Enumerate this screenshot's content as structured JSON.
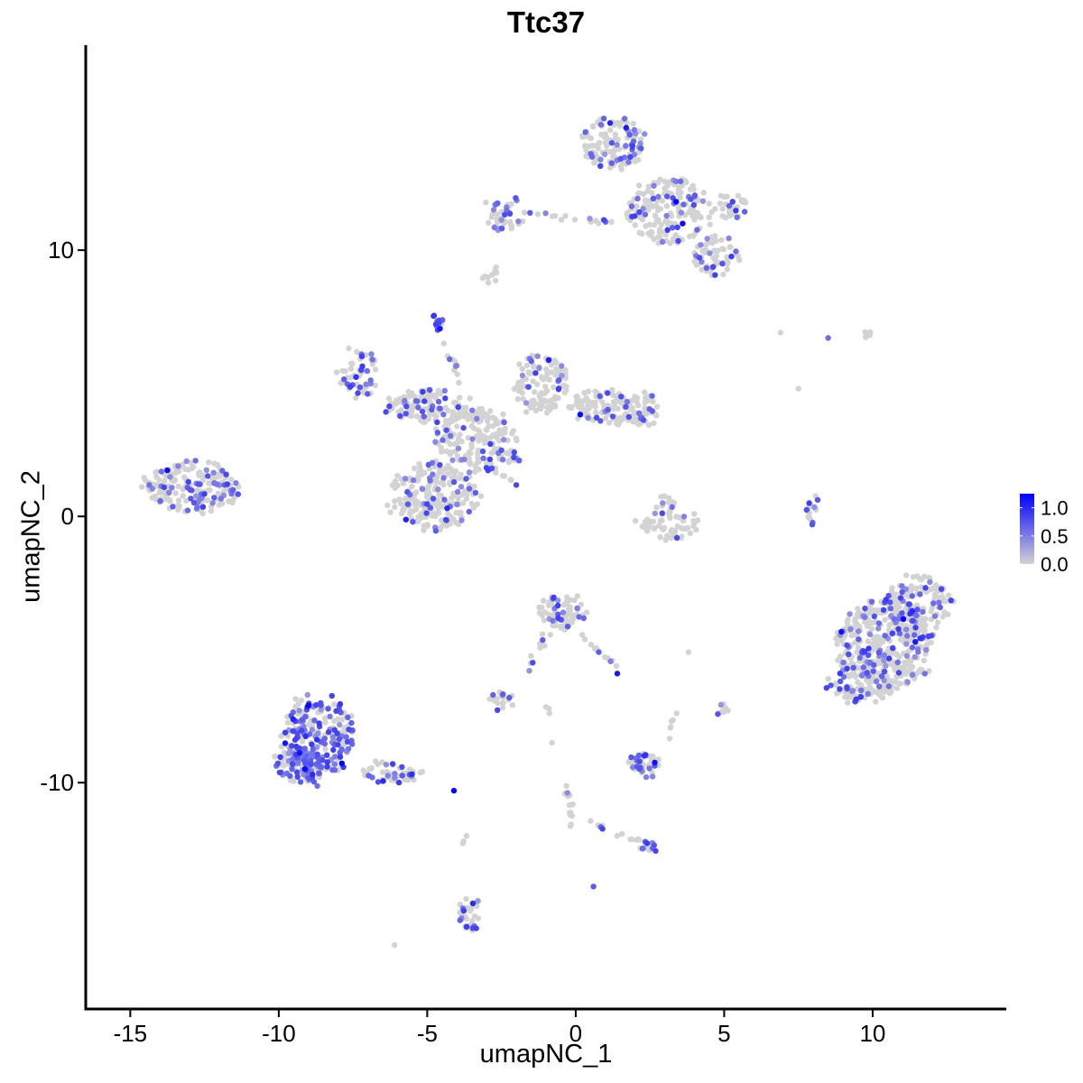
{
  "chart_data": {
    "type": "scatter",
    "title": "Ttc37",
    "xlabel": "umapNC_1",
    "ylabel": "umapNC_2",
    "xlim": [
      -16.5,
      14.5
    ],
    "ylim": [
      -18.5,
      17.7
    ],
    "x_ticks": [
      -15,
      -10,
      -5,
      0,
      5,
      10
    ],
    "x_tick_labels": [
      "-15",
      "-10",
      "-5",
      "0",
      "5",
      "10"
    ],
    "y_ticks": [
      -10,
      0,
      10
    ],
    "y_tick_labels": [
      "-10",
      "0",
      "10"
    ],
    "grid": false,
    "legend_position": "right",
    "color_scale": {
      "low_color": "#d3d3d3",
      "high_color": "#0000ff",
      "min": 0.0,
      "max": 1.25,
      "tick_values": [
        0.0,
        0.5,
        1.0
      ],
      "tick_labels": [
        "0.0",
        "0.5",
        "1.0"
      ]
    },
    "clusters": [
      {
        "cx": -12.9,
        "cy": 1.1,
        "rx": 1.7,
        "ry": 0.9,
        "n": 200,
        "pos_frac": 0.28
      },
      {
        "cx": -4.8,
        "cy": 0.8,
        "rx": 1.5,
        "ry": 1.3,
        "n": 220,
        "pos_frac": 0.18
      },
      {
        "cx": -3.4,
        "cy": 2.9,
        "rx": 1.4,
        "ry": 1.2,
        "n": 170,
        "pos_frac": 0.15
      },
      {
        "cx": -5.0,
        "cy": 4.1,
        "rx": 1.3,
        "ry": 0.6,
        "n": 110,
        "pos_frac": 0.3
      },
      {
        "cx": -7.3,
        "cy": 5.4,
        "rx": 0.6,
        "ry": 0.9,
        "n": 55,
        "pos_frac": 0.35
      },
      {
        "cx": -1.2,
        "cy": 5.0,
        "rx": 0.9,
        "ry": 1.1,
        "n": 110,
        "pos_frac": 0.18
      },
      {
        "cx": 0.8,
        "cy": 4.1,
        "rx": 1.1,
        "ry": 0.6,
        "n": 90,
        "pos_frac": 0.12
      },
      {
        "cx": 2.0,
        "cy": 4.0,
        "rx": 0.8,
        "ry": 0.7,
        "n": 80,
        "pos_frac": 0.12
      },
      {
        "cx": -4.6,
        "cy": 7.3,
        "rx": 0.25,
        "ry": 0.3,
        "n": 14,
        "pos_frac": 0.7
      },
      {
        "cx": -2.4,
        "cy": 2.2,
        "rx": 0.6,
        "ry": 0.3,
        "n": 20,
        "pos_frac": 0.3
      },
      {
        "cx": 1.2,
        "cy": 14.0,
        "rx": 1.0,
        "ry": 1.0,
        "n": 130,
        "pos_frac": 0.25
      },
      {
        "cx": 3.2,
        "cy": 11.5,
        "rx": 1.5,
        "ry": 1.2,
        "n": 180,
        "pos_frac": 0.2
      },
      {
        "cx": 4.7,
        "cy": 9.8,
        "rx": 0.8,
        "ry": 0.8,
        "n": 60,
        "pos_frac": 0.2
      },
      {
        "cx": -2.4,
        "cy": 11.3,
        "rx": 0.7,
        "ry": 0.6,
        "n": 45,
        "pos_frac": 0.3
      },
      {
        "cx": 5.3,
        "cy": 11.6,
        "rx": 0.5,
        "ry": 0.5,
        "n": 30,
        "pos_frac": 0.3
      },
      {
        "cx": 3.2,
        "cy": -0.3,
        "rx": 1.0,
        "ry": 0.5,
        "n": 60,
        "pos_frac": 0.05
      },
      {
        "cx": 3.1,
        "cy": 0.5,
        "rx": 0.3,
        "ry": 0.4,
        "n": 12,
        "pos_frac": 0.4
      },
      {
        "cx": 10.4,
        "cy": -4.8,
        "rx": 1.6,
        "ry": 1.7,
        "n": 420,
        "pos_frac": 0.18
      },
      {
        "cx": 11.6,
        "cy": -3.3,
        "rx": 1.1,
        "ry": 1.1,
        "n": 140,
        "pos_frac": 0.2
      },
      {
        "cx": 9.5,
        "cy": -6.3,
        "rx": 1.0,
        "ry": 0.7,
        "n": 90,
        "pos_frac": 0.15
      },
      {
        "cx": -8.7,
        "cy": -8.3,
        "rx": 1.2,
        "ry": 1.6,
        "n": 230,
        "pos_frac": 0.5
      },
      {
        "cx": -9.4,
        "cy": -9.4,
        "rx": 0.9,
        "ry": 0.6,
        "n": 90,
        "pos_frac": 0.4
      },
      {
        "cx": -6.2,
        "cy": -9.6,
        "rx": 1.0,
        "ry": 0.4,
        "n": 50,
        "pos_frac": 0.35
      },
      {
        "cx": -0.5,
        "cy": -3.6,
        "rx": 0.7,
        "ry": 0.6,
        "n": 75,
        "pos_frac": 0.3
      },
      {
        "cx": -2.5,
        "cy": -6.9,
        "rx": 0.35,
        "ry": 0.2,
        "n": 20,
        "pos_frac": 0.4
      },
      {
        "cx": 2.3,
        "cy": -9.3,
        "rx": 0.5,
        "ry": 0.5,
        "n": 45,
        "pos_frac": 0.45
      },
      {
        "cx": 2.4,
        "cy": -12.4,
        "rx": 0.3,
        "ry": 0.2,
        "n": 14,
        "pos_frac": 0.5
      },
      {
        "cx": -3.6,
        "cy": -15.0,
        "rx": 0.3,
        "ry": 0.6,
        "n": 30,
        "pos_frac": 0.3
      },
      {
        "cx": 5.0,
        "cy": -7.3,
        "rx": 0.2,
        "ry": 0.2,
        "n": 10,
        "pos_frac": 0.2
      },
      {
        "cx": -2.8,
        "cy": 9.0,
        "rx": 0.25,
        "ry": 0.3,
        "n": 10,
        "pos_frac": 0.0
      },
      {
        "cx": 8.0,
        "cy": 0.2,
        "rx": 0.25,
        "ry": 0.6,
        "n": 16,
        "pos_frac": 0.3
      },
      {
        "cx": 9.8,
        "cy": 6.8,
        "rx": 0.2,
        "ry": 0.2,
        "n": 5,
        "pos_frac": 0.0
      }
    ],
    "trails": [
      {
        "from": [
          -4.4,
          6.5
        ],
        "to": [
          -3.2,
          3.5
        ],
        "n": 12,
        "pos_frac": 0.3
      },
      {
        "from": [
          -3.2,
          2.0
        ],
        "to": [
          -1.2,
          0.7
        ],
        "n": 14,
        "pos_frac": 0.2
      },
      {
        "from": [
          -1.6,
          11.4
        ],
        "to": [
          1.2,
          11.0
        ],
        "n": 18,
        "pos_frac": 0.15
      },
      {
        "from": [
          0.2,
          -4.5
        ],
        "to": [
          1.4,
          -5.6
        ],
        "n": 12,
        "pos_frac": 0.3
      },
      {
        "from": [
          -0.9,
          -4.3
        ],
        "to": [
          -1.8,
          -6.0
        ],
        "n": 10,
        "pos_frac": 0.4
      },
      {
        "from": [
          -0.3,
          -10.2
        ],
        "to": [
          -0.1,
          -11.9
        ],
        "n": 14,
        "pos_frac": 0.3
      },
      {
        "from": [
          0.5,
          -11.5
        ],
        "to": [
          2.3,
          -12.3
        ],
        "n": 12,
        "pos_frac": 0.2
      },
      {
        "from": [
          3.1,
          -8.2
        ],
        "to": [
          3.5,
          -7.4
        ],
        "n": 6,
        "pos_frac": 0.0
      },
      {
        "from": [
          -3.7,
          -11.9
        ],
        "to": [
          -3.7,
          -12.3
        ],
        "n": 3,
        "pos_frac": 0.0
      },
      {
        "from": [
          -1.0,
          -7.2
        ],
        "to": [
          -0.8,
          -7.5
        ],
        "n": 3,
        "pos_frac": 0.0
      }
    ],
    "singletons": [
      {
        "x": 6.9,
        "y": 6.9,
        "v": 0.0
      },
      {
        "x": 8.5,
        "y": 6.7,
        "v": 0.6
      },
      {
        "x": 7.5,
        "y": 4.8,
        "v": 0.0
      },
      {
        "x": 0.6,
        "y": -13.9,
        "v": 0.7
      },
      {
        "x": -6.1,
        "y": -16.1,
        "v": 0.0
      },
      {
        "x": 3.8,
        "y": -5.1,
        "v": 0.0
      },
      {
        "x": 1.4,
        "y": -5.9,
        "v": 1.1
      },
      {
        "x": -4.1,
        "y": -10.3,
        "v": 1.2
      },
      {
        "x": 3.6,
        "y": 11.0,
        "v": 1.2
      },
      {
        "x": -9.0,
        "y": -7.1,
        "v": 1.2
      },
      {
        "x": 1.7,
        "y": 14.6,
        "v": 1.1
      },
      {
        "x": -0.8,
        "y": -8.5,
        "v": 0.0
      }
    ]
  }
}
